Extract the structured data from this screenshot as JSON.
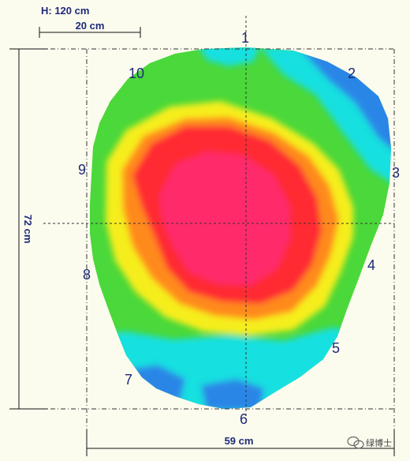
{
  "header": {
    "height_label": "H: 120 cm",
    "scale_label": "20 cm"
  },
  "dimensions": {
    "vertical": "72 cm",
    "horizontal": "59 cm"
  },
  "points": [
    "1",
    "2",
    "3",
    "4",
    "5",
    "6",
    "7",
    "8",
    "9",
    "10"
  ],
  "watermark": "绿博士",
  "colors": {
    "core": "#ff2a6a",
    "red": "#ff2a30",
    "orange": "#ff8a1e",
    "yellow": "#f6ee1a",
    "green": "#4bd83a",
    "cyan": "#16e0e0",
    "blue": "#2a86e6",
    "frame": "#1e2a78"
  }
}
